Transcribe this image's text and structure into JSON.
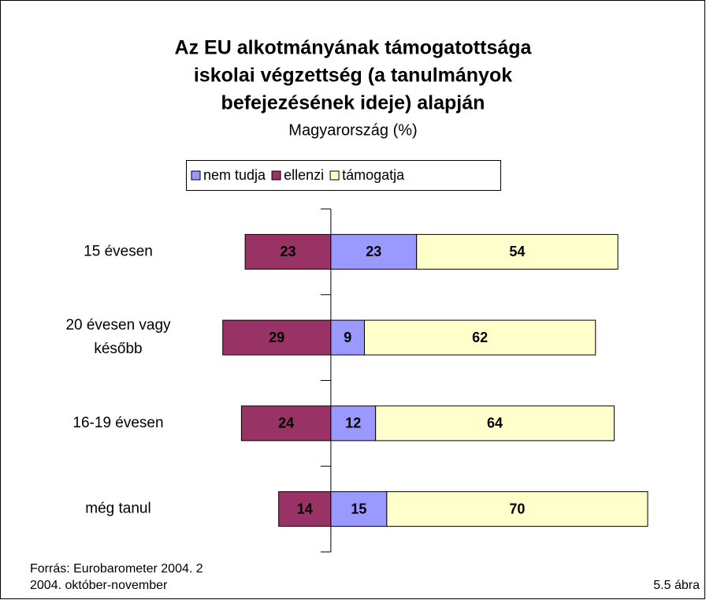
{
  "chart_data": {
    "type": "diverging-bar",
    "title": [
      "Az EU alkotmányának támogatottsága",
      "iskolai végzettség (a tanulmányok",
      "befejezésének ideje) alapján"
    ],
    "subtitle": "Magyarország (%)",
    "categories": [
      "15 évesen",
      "20 évesen vagy\nkésőbb",
      "16-19 évesen",
      "még tanul"
    ],
    "series": [
      {
        "name": "nem tudja",
        "color": "#9999ff",
        "values": [
          23,
          9,
          12,
          15
        ]
      },
      {
        "name": "ellenzi",
        "color": "#993366",
        "values": [
          23,
          29,
          24,
          14
        ]
      },
      {
        "name": "támogatja",
        "color": "#ffffcc",
        "values": [
          54,
          62,
          64,
          70
        ]
      }
    ],
    "xlim": [
      -30,
      85
    ],
    "source": [
      "Forrás: Eurobarometer 2004. 2",
      "2004. október-november"
    ],
    "figure_label": "5.5 ábra"
  }
}
